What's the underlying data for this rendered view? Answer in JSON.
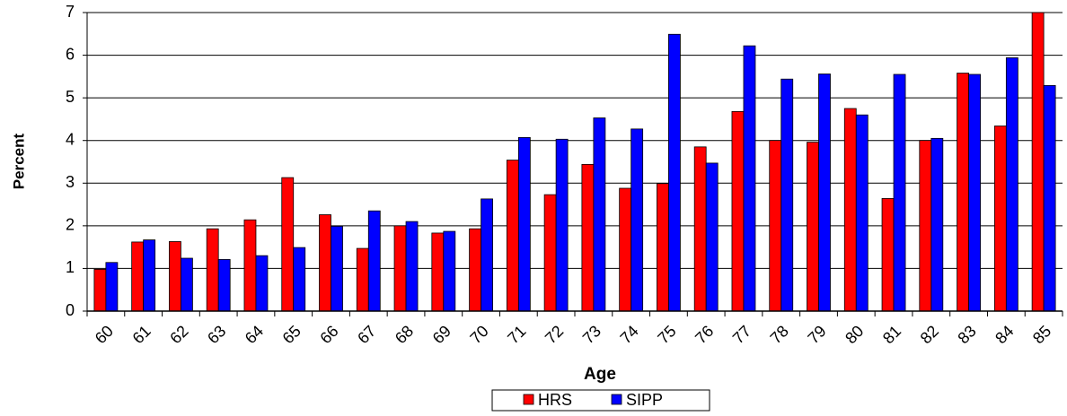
{
  "chart_data": {
    "type": "bar",
    "x_label": "Age",
    "y_label": "Percent",
    "categories": [
      "60",
      "61",
      "62",
      "63",
      "64",
      "65",
      "66",
      "67",
      "68",
      "69",
      "70",
      "71",
      "72",
      "73",
      "74",
      "75",
      "76",
      "77",
      "78",
      "79",
      "80",
      "81",
      "82",
      "83",
      "84",
      "85"
    ],
    "series": [
      {
        "name": "HRS",
        "color": "#ff0000",
        "values": [
          0.98,
          1.62,
          1.63,
          1.93,
          2.14,
          3.13,
          2.26,
          1.47,
          2.0,
          1.83,
          1.93,
          3.54,
          2.73,
          3.44,
          2.88,
          2.99,
          3.85,
          4.68,
          4.0,
          3.96,
          4.75,
          2.64,
          4.0,
          5.58,
          4.34,
          7.0
        ]
      },
      {
        "name": "SIPP",
        "color": "#0000ff",
        "values": [
          1.14,
          1.67,
          1.24,
          1.21,
          1.3,
          1.49,
          1.99,
          2.35,
          2.1,
          1.87,
          2.63,
          4.07,
          4.03,
          4.53,
          4.27,
          6.49,
          3.47,
          6.22,
          5.44,
          5.56,
          4.6,
          5.55,
          4.05,
          5.55,
          5.94,
          5.29
        ]
      }
    ],
    "ylim": [
      0,
      7
    ],
    "yticks": [
      0,
      1,
      2,
      3,
      4,
      5,
      6,
      7
    ],
    "grid": true,
    "legend": "bottom"
  }
}
